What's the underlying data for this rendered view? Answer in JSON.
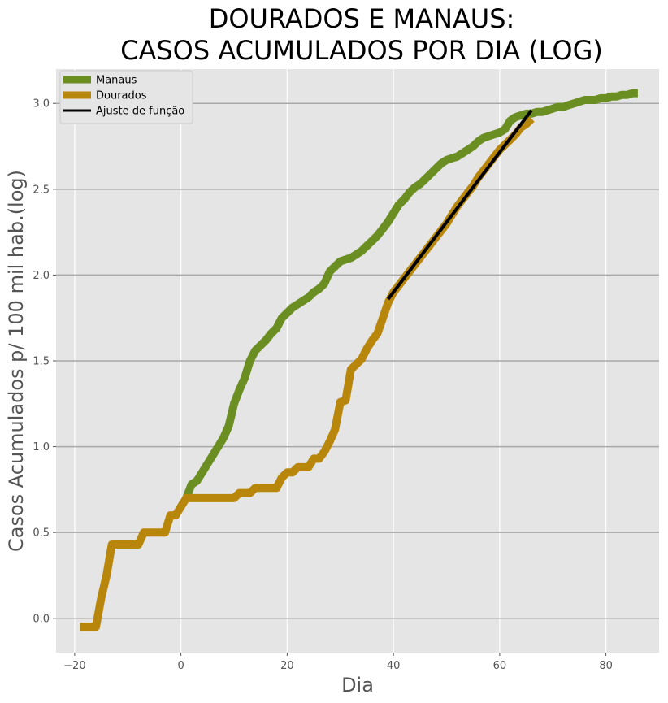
{
  "chart_data": {
    "type": "line",
    "title_lines": [
      "DOURADOS E MANAUS:",
      "CASOS ACUMULADOS POR DIA (LOG)"
    ],
    "xlabel": "Dia",
    "ylabel": "Casos Acumulados p/ 100 mil hab.(log)",
    "xlim": [
      -23.5,
      90
    ],
    "ylim": [
      -0.2,
      3.2
    ],
    "xticks": [
      -20,
      0,
      20,
      40,
      60,
      80
    ],
    "xtick_labels": [
      "−20",
      "0",
      "20",
      "40",
      "60",
      "80"
    ],
    "yticks": [
      0.0,
      0.5,
      1.0,
      1.5,
      2.0,
      2.5,
      3.0
    ],
    "ytick_labels": [
      "0.0",
      "0.5",
      "1.0",
      "1.5",
      "2.0",
      "2.5",
      "3.0"
    ],
    "grid": true,
    "legend_position": "top-left",
    "colors": {
      "background": "#e5e5e5",
      "grid_vertical": "#ffffff",
      "grid_horizontal": "#a8a8a8",
      "manaus": "#6b8e23",
      "dourados": "#b8860b",
      "fit": "#000000"
    },
    "series": [
      {
        "name": "Manaus",
        "color": "#6b8e23",
        "x": [
          1,
          2,
          3,
          4,
          5,
          6,
          7,
          8,
          9,
          10,
          11,
          12,
          13,
          14,
          15,
          16,
          17,
          18,
          19,
          20,
          21,
          22,
          23,
          24,
          25,
          26,
          27,
          28,
          29,
          30,
          31,
          32,
          33,
          34,
          35,
          36,
          37,
          38,
          39,
          40,
          41,
          42,
          43,
          44,
          45,
          46,
          47,
          48,
          49,
          50,
          51,
          52,
          53,
          54,
          55,
          56,
          57,
          58,
          59,
          60,
          61,
          62,
          63,
          64,
          65,
          66,
          67,
          68,
          69,
          70,
          71,
          72,
          73,
          74,
          75,
          76,
          77,
          78,
          79,
          80,
          81,
          82,
          83,
          84,
          85,
          86
        ],
        "y": [
          0.7,
          0.78,
          0.8,
          0.85,
          0.9,
          0.95,
          1.0,
          1.05,
          1.12,
          1.25,
          1.33,
          1.4,
          1.5,
          1.56,
          1.59,
          1.62,
          1.66,
          1.69,
          1.75,
          1.78,
          1.81,
          1.83,
          1.85,
          1.87,
          1.9,
          1.92,
          1.95,
          2.02,
          2.05,
          2.08,
          2.09,
          2.1,
          2.12,
          2.14,
          2.17,
          2.2,
          2.23,
          2.27,
          2.31,
          2.36,
          2.41,
          2.44,
          2.48,
          2.51,
          2.53,
          2.56,
          2.59,
          2.62,
          2.65,
          2.67,
          2.68,
          2.69,
          2.71,
          2.73,
          2.75,
          2.78,
          2.8,
          2.81,
          2.82,
          2.83,
          2.85,
          2.9,
          2.92,
          2.93,
          2.94,
          2.94,
          2.95,
          2.95,
          2.96,
          2.97,
          2.98,
          2.98,
          2.99,
          3.0,
          3.01,
          3.02,
          3.02,
          3.02,
          3.03,
          3.03,
          3.04,
          3.04,
          3.05,
          3.05,
          3.06,
          3.06
        ]
      },
      {
        "name": "Dourados",
        "color": "#b8860b",
        "x": [
          -19,
          -18,
          -17,
          -16,
          -15,
          -14,
          -13,
          -12,
          -11,
          -10,
          -9,
          -8,
          -7,
          -6,
          -5,
          -4,
          -3,
          -2,
          -1,
          0,
          1,
          2,
          3,
          4,
          5,
          6,
          7,
          8,
          9,
          10,
          11,
          12,
          13,
          14,
          15,
          16,
          17,
          18,
          19,
          20,
          21,
          22,
          23,
          24,
          25,
          26,
          27,
          28,
          29,
          30,
          31,
          32,
          33,
          34,
          35,
          36,
          37,
          38,
          39,
          40,
          41,
          42,
          43,
          44,
          45,
          46,
          47,
          48,
          49,
          50,
          51,
          52,
          53,
          54,
          55,
          56,
          57,
          58,
          59,
          60,
          61,
          62,
          63,
          64,
          65,
          66
        ],
        "y": [
          -0.05,
          -0.05,
          -0.05,
          -0.05,
          0.12,
          0.25,
          0.43,
          0.43,
          0.43,
          0.43,
          0.43,
          0.43,
          0.5,
          0.5,
          0.5,
          0.5,
          0.5,
          0.6,
          0.6,
          0.65,
          0.7,
          0.7,
          0.7,
          0.7,
          0.7,
          0.7,
          0.7,
          0.7,
          0.7,
          0.7,
          0.73,
          0.73,
          0.73,
          0.76,
          0.76,
          0.76,
          0.76,
          0.76,
          0.82,
          0.85,
          0.85,
          0.88,
          0.88,
          0.88,
          0.93,
          0.93,
          0.97,
          1.03,
          1.1,
          1.26,
          1.27,
          1.45,
          1.48,
          1.51,
          1.57,
          1.62,
          1.66,
          1.75,
          1.84,
          1.9,
          1.94,
          1.98,
          2.02,
          2.06,
          2.1,
          2.14,
          2.18,
          2.22,
          2.26,
          2.3,
          2.35,
          2.4,
          2.44,
          2.48,
          2.52,
          2.57,
          2.61,
          2.65,
          2.69,
          2.73,
          2.76,
          2.79,
          2.82,
          2.86,
          2.88,
          2.91
        ]
      },
      {
        "name": "Ajuste de função",
        "color": "#000000",
        "x": [
          39,
          66
        ],
        "y": [
          1.86,
          2.96
        ]
      }
    ]
  }
}
